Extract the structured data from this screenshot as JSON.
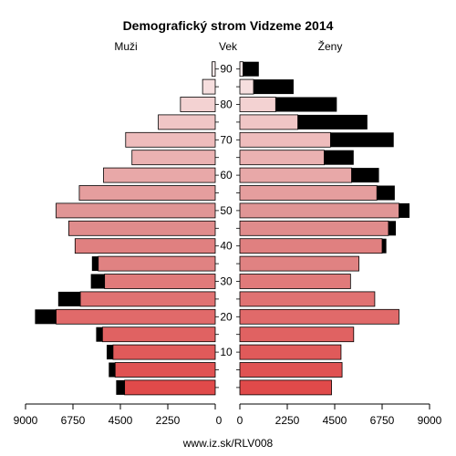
{
  "chart_data": {
    "type": "bar",
    "title": "Demografický strom Vidzeme 2014",
    "footer": "www.iz.sk/RLV008",
    "left_header": "Muži",
    "center_header": "Vek",
    "right_header": "Ženy",
    "xlim": [
      0,
      9000
    ],
    "x_ticks": [
      {
        "value": 0,
        "label": "0"
      },
      {
        "value": 2250,
        "label": "2250"
      },
      {
        "value": 4500,
        "label": "4500"
      },
      {
        "value": 6750,
        "label": "6750"
      },
      {
        "value": 9000,
        "label": "9000"
      }
    ],
    "age_ticks": [
      "10",
      "20",
      "30",
      "40",
      "50",
      "60",
      "70",
      "80",
      "90"
    ],
    "age_groups": [
      "0-4",
      "5-9",
      "10-14",
      "15-19",
      "20-24",
      "25-29",
      "30-34",
      "35-39",
      "40-44",
      "45-49",
      "50-54",
      "55-59",
      "60-64",
      "65-69",
      "70-74",
      "75-79",
      "80-84",
      "85-89",
      "90+"
    ],
    "series": [
      {
        "name": "Muži",
        "values": [
          4300,
          4750,
          4850,
          5350,
          7550,
          6400,
          5250,
          5550,
          6650,
          6950,
          7550,
          6450,
          5300,
          3950,
          4250,
          2700,
          1650,
          600,
          150
        ],
        "surplus": [
          400,
          300,
          300,
          300,
          1000,
          1050,
          650,
          300,
          0,
          0,
          0,
          0,
          0,
          0,
          0,
          0,
          0,
          0,
          0
        ]
      },
      {
        "name": "Ženy",
        "values": [
          4350,
          4850,
          4800,
          5400,
          7550,
          6400,
          5250,
          5650,
          6750,
          7050,
          7550,
          6500,
          5300,
          4000,
          4300,
          2750,
          1700,
          650,
          150
        ],
        "surplus": [
          0,
          0,
          0,
          0,
          0,
          0,
          0,
          0,
          200,
          350,
          500,
          850,
          1300,
          1400,
          3000,
          3300,
          2900,
          1900,
          750
        ]
      }
    ],
    "colors": {
      "surplus": "#000000",
      "bar_ramp": [
        "#e04a4a",
        "#e05252",
        "#e05a5a",
        "#e06262",
        "#e06a6a",
        "#e07272",
        "#e07a7a",
        "#e08282",
        "#e08080",
        "#e08c8c",
        "#e09595",
        "#e59e9e",
        "#e8a8a8",
        "#ebb2b2",
        "#eebcbc",
        "#f0c6c6",
        "#f3d2d2",
        "#f6dede",
        "#f9e9e9"
      ]
    }
  }
}
